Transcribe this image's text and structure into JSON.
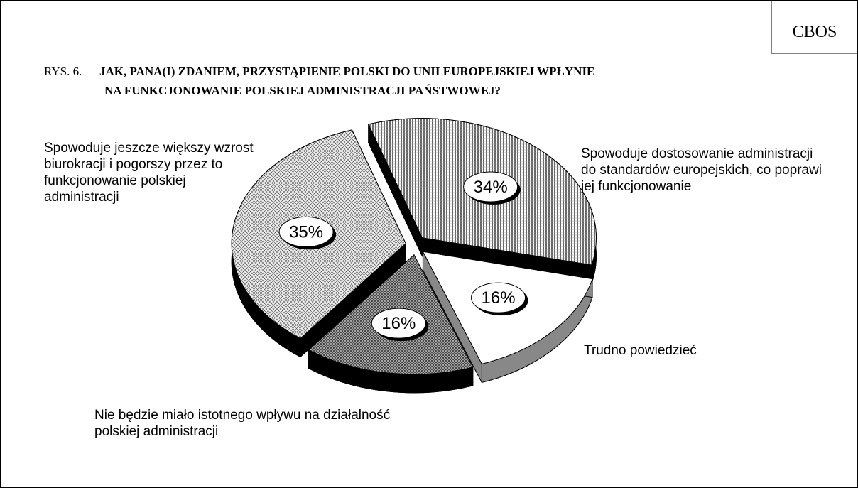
{
  "source": "CBOS",
  "chart_data": {
    "type": "pie",
    "figure_label": "RYS. 6.",
    "title": [
      "JAK, PANA(I) ZDANIEM, PRZYSTĄPIENIE POLSKI DO UNII EUROPEJSKIEJ WPŁYNIE",
      "NA FUNKCJONOWANIE POLSKIEJ ADMINISTRACJI PAŃSTWOWEJ?"
    ],
    "categories": [
      "Spowoduje dostosowanie administracji do standardów europejskich, co poprawi jej funkcjonowanie",
      "Trudno powiedzieć",
      "Nie będzie miało istotnego wpływu na działalność polskiej administracji",
      "Spowoduje jeszcze większy wzrost biurokracji i pogorszy przez to funkcjonowanie polskiej administracji"
    ],
    "values": [
      34,
      16,
      16,
      35
    ],
    "value_labels": [
      "34%",
      "16%",
      "16%",
      "35%"
    ]
  }
}
